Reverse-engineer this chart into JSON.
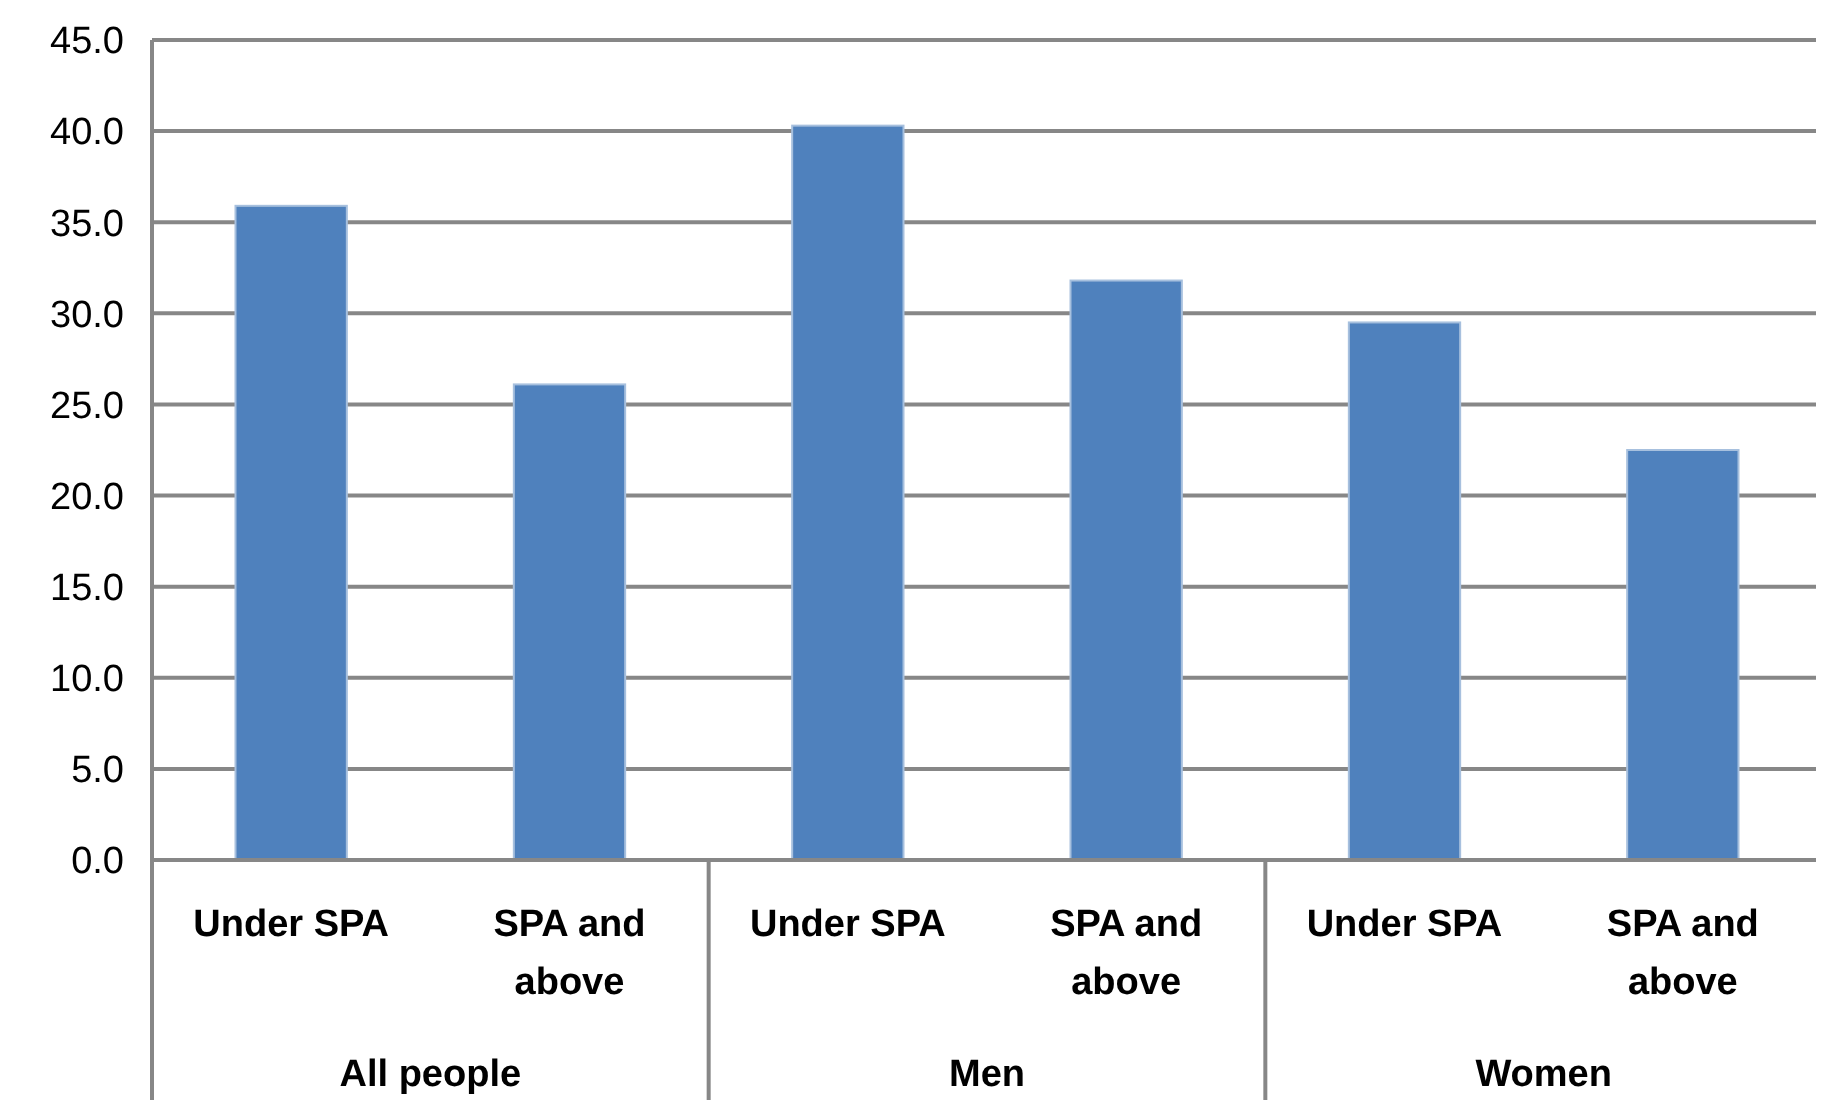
{
  "chart_data": {
    "type": "bar",
    "categories": [
      "Under SPA",
      "SPA and above",
      "Under SPA",
      "SPA and above",
      "Under SPA",
      "SPA and above"
    ],
    "values": [
      35.9,
      26.1,
      40.3,
      31.8,
      29.5,
      22.5
    ],
    "color": "#4f81bd",
    "ylim": [
      0,
      45
    ],
    "yticks": [
      {
        "value": 0,
        "label": "0.0"
      },
      {
        "value": 5,
        "label": "5.0"
      },
      {
        "value": 10,
        "label": "10.0"
      },
      {
        "value": 15,
        "label": "15.0"
      },
      {
        "value": 20,
        "label": "20.0"
      },
      {
        "value": 25,
        "label": "25.0"
      },
      {
        "value": 30,
        "label": "30.0"
      },
      {
        "value": 35,
        "label": "35.0"
      },
      {
        "value": 40,
        "label": "40.0"
      },
      {
        "value": 45,
        "label": "45.0"
      }
    ],
    "grid": "y",
    "annotations": [
      "All people",
      "Men",
      "Women"
    ]
  }
}
